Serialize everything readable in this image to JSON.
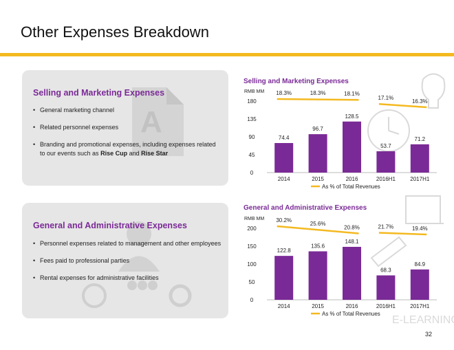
{
  "title": "Other Expenses Breakdown",
  "page_number": "32",
  "colors": {
    "accent_yellow": "#f4b91f",
    "bar_purple": "#7a2a96",
    "title_purple": "#7a2a96",
    "card_bg": "#e6e6e6"
  },
  "card1": {
    "heading": "Selling and Marketing Expenses",
    "bullets": [
      "General marketing channel",
      "Related personnel expenses",
      "Branding and promotional expenses, including expenses related to our events such as",
      "Rise Cup",
      "and",
      "Rise Star"
    ]
  },
  "card2": {
    "heading": "General and Administrative Expenses",
    "bullets": [
      "Personnel expenses related to management and other employees",
      "Fees paid to professional parties",
      "Rental expenses for administrative facilities"
    ]
  },
  "chart_data": [
    {
      "type": "bar",
      "title": "Selling and Marketing Expenses",
      "unit_label": "RMB MM",
      "categories": [
        "2014",
        "2015",
        "2016",
        "2016H1",
        "2017H1"
      ],
      "values": [
        74.4,
        96.7,
        128.5,
        53.7,
        71.2
      ],
      "value_labels": [
        "74.4",
        "96.7",
        "128.5",
        "53.7",
        "71.2"
      ],
      "ylim": [
        0,
        180
      ],
      "yticks": [
        0,
        45,
        90,
        135,
        180
      ],
      "ratio_series": {
        "name": "As % of Total Revenues",
        "values": [
          18.3,
          18.3,
          18.1,
          17.1,
          16.3
        ],
        "labels": [
          "18.3%",
          "18.3%",
          "18.1%",
          "17.1%",
          "16.3%"
        ],
        "segments": [
          [
            0,
            2
          ],
          [
            3,
            4
          ]
        ]
      },
      "legend": "bottom"
    },
    {
      "type": "bar",
      "title": "General and Administrative Expenses",
      "unit_label": "RMB MM",
      "categories": [
        "2014",
        "2015",
        "2016",
        "2016H1",
        "2017H1"
      ],
      "values": [
        122.8,
        135.6,
        148.1,
        68.3,
        84.9
      ],
      "value_labels": [
        "122.8",
        "135.6",
        "148.1",
        "68.3",
        "84.9"
      ],
      "ylim": [
        0,
        200
      ],
      "yticks": [
        0,
        50,
        100,
        150,
        200
      ],
      "ratio_series": {
        "name": "As % of Total Revenues",
        "values": [
          30.2,
          25.6,
          20.8,
          21.7,
          19.4
        ],
        "labels": [
          "30.2%",
          "25.6%",
          "20.8%",
          "21.7%",
          "19.4%"
        ],
        "segments": [
          [
            0,
            2
          ],
          [
            3,
            4
          ]
        ]
      },
      "legend": "bottom"
    }
  ]
}
